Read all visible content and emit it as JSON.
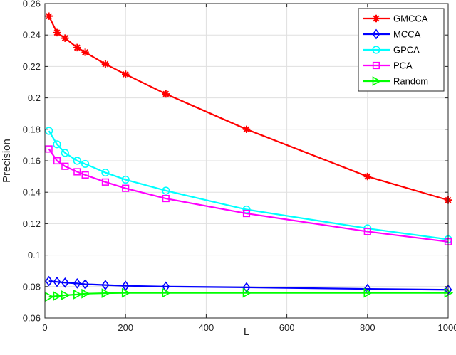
{
  "chart_data": {
    "type": "line",
    "xlabel": "L",
    "ylabel": "Precision",
    "xlim": [
      0,
      1000
    ],
    "ylim": [
      0.06,
      0.26
    ],
    "xticks": [
      0,
      200,
      400,
      600,
      800,
      1000
    ],
    "yticks": [
      0.06,
      0.08,
      0.1,
      0.12,
      0.14,
      0.16,
      0.18,
      0.2,
      0.22,
      0.24,
      0.26
    ],
    "xtick_labels": [
      "0",
      "200",
      "400",
      "600",
      "800",
      "1000"
    ],
    "ytick_labels": [
      "0.06",
      "0.08",
      "0.1",
      "0.12",
      "0.14",
      "0.16",
      "0.18",
      "0.2",
      "0.22",
      "0.24",
      "0.26"
    ],
    "grid": true,
    "legend_position": "top-right",
    "x": [
      10,
      30,
      50,
      80,
      100,
      150,
      200,
      300,
      500,
      800,
      1000
    ],
    "series": [
      {
        "name": "GMCCA",
        "color": "#ff0000",
        "marker": "asterisk",
        "values": [
          0.252,
          0.2415,
          0.238,
          0.232,
          0.229,
          0.2215,
          0.215,
          0.2025,
          0.18,
          0.15,
          0.135
        ]
      },
      {
        "name": "MCCA",
        "color": "#0000ff",
        "marker": "diamond",
        "values": [
          0.0835,
          0.083,
          0.0825,
          0.082,
          0.0815,
          0.081,
          0.0805,
          0.08,
          0.0795,
          0.0785,
          0.078
        ]
      },
      {
        "name": "GPCA",
        "color": "#00ffff",
        "marker": "circle",
        "values": [
          0.179,
          0.1705,
          0.165,
          0.16,
          0.158,
          0.1525,
          0.148,
          0.141,
          0.129,
          0.117,
          0.11
        ]
      },
      {
        "name": "PCA",
        "color": "#ff00ff",
        "marker": "square",
        "values": [
          0.1675,
          0.16,
          0.1565,
          0.153,
          0.151,
          0.1465,
          0.1425,
          0.136,
          0.1265,
          0.115,
          0.1085
        ]
      },
      {
        "name": "Random",
        "color": "#00ff00",
        "marker": "triangle-right",
        "values": [
          0.0735,
          0.074,
          0.0745,
          0.075,
          0.0755,
          0.0758,
          0.076,
          0.076,
          0.076,
          0.076,
          0.076
        ]
      }
    ]
  }
}
